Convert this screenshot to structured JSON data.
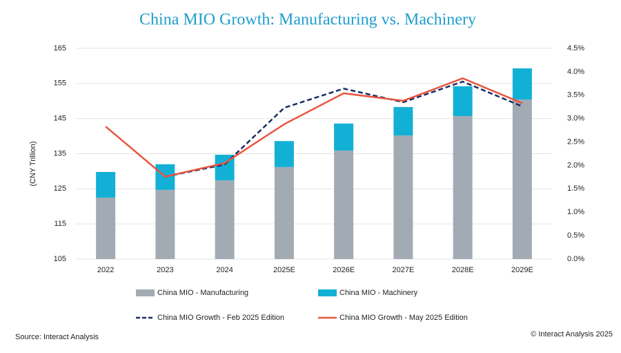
{
  "chart_data": {
    "type": "bar",
    "title": "China MIO Growth: Manufacturing vs. Machinery",
    "y_label": "(CNY Trillion)",
    "source": "Source: Interact Analysis",
    "copyright": "© Interact Analysis 2025",
    "stacked": true,
    "grid": true,
    "categories": [
      "2022",
      "2023",
      "2024",
      "2025E",
      "2026E",
      "2027E",
      "2028E",
      "2029E"
    ],
    "ylim": [
      105,
      165
    ],
    "yticks": [
      105,
      115,
      125,
      135,
      145,
      155,
      165
    ],
    "y2lim": [
      0,
      4.5
    ],
    "y2ticks": [
      {
        "value": 0,
        "label": "0.0%"
      },
      {
        "value": 0.5,
        "label": "0.5%"
      },
      {
        "value": 1,
        "label": "1.0%"
      },
      {
        "value": 1.5,
        "label": "1.5%"
      },
      {
        "value": 2,
        "label": "2.0%"
      },
      {
        "value": 2.5,
        "label": "2.5%"
      },
      {
        "value": 3,
        "label": "3.0%"
      },
      {
        "value": 3.5,
        "label": "3.5%"
      },
      {
        "value": 4,
        "label": "4.0%"
      },
      {
        "value": 4.5,
        "label": "4.5%"
      }
    ],
    "series": [
      {
        "name": "China MIO - Manufacturing",
        "type": "bar",
        "color": "#a2abb3",
        "values": [
          122.5,
          124.7,
          127.4,
          131.2,
          135.9,
          140.2,
          145.7,
          150.4
        ]
      },
      {
        "name": "China MIO - Machinery",
        "type": "bar",
        "color": "#13b0d6",
        "values": [
          7.3,
          7.3,
          7.3,
          7.4,
          7.7,
          8.1,
          8.5,
          8.9
        ]
      },
      {
        "name": "China MIO Growth - Feb 2025 Edition",
        "type": "line",
        "axis": "y2",
        "dashed": true,
        "color": "#1b2a63",
        "values": [
          null,
          1.76,
          2.02,
          3.23,
          3.64,
          3.35,
          3.79,
          3.26
        ]
      },
      {
        "name": "China MIO Growth - May 2025 Edition",
        "type": "line",
        "axis": "y2",
        "dashed": false,
        "color": "#e8553e",
        "values": [
          2.83,
          1.76,
          2.05,
          2.88,
          3.54,
          3.38,
          3.86,
          3.33
        ]
      }
    ]
  }
}
